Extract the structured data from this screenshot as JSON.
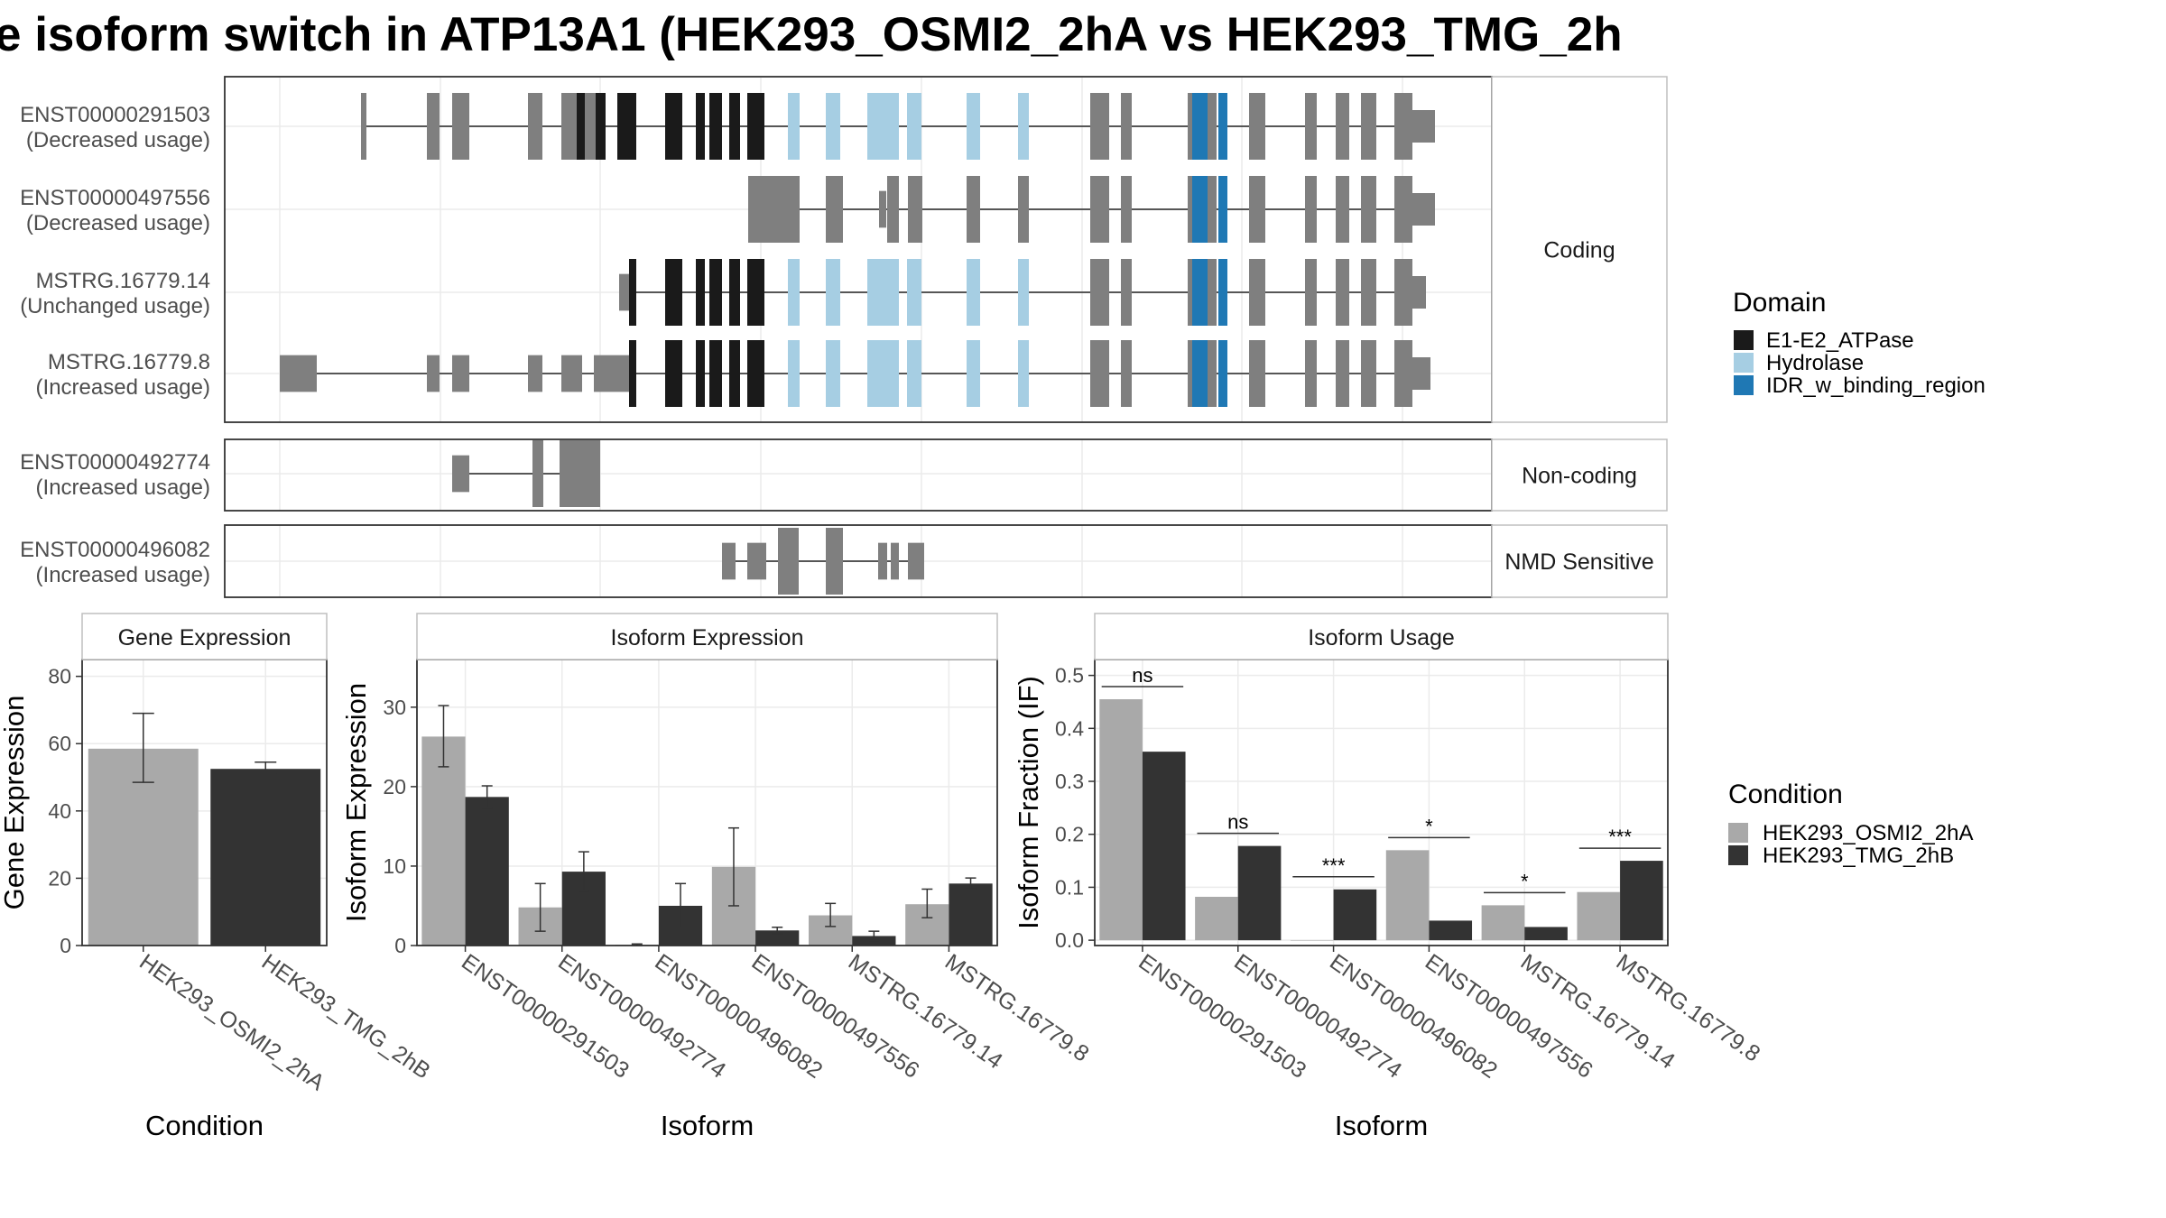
{
  "title": "e isoform switch in ATP13A1 (HEK293_OSMI2_2hA vs HEK293_TMG_2h",
  "colors": {
    "exon": "#7f7f7f",
    "E1-E2_ATPase": "#1a1a1a",
    "Hydrolase": "#a6cee3",
    "IDR_w_binding_region": "#1f78b4",
    "condition_a": "#a9a9a9",
    "condition_b": "#333333",
    "panel_border": "#333333",
    "strip_bg": "#ffffff",
    "grid": "#ebebeb"
  },
  "structure": {
    "facets": [
      "Coding",
      "Non-coding",
      "NMD Sensitive"
    ],
    "transcripts": [
      {
        "id": "ENST00000291503",
        "usage": "(Decreased usage)",
        "facet": "Coding"
      },
      {
        "id": "ENST00000497556",
        "usage": "(Decreased usage)",
        "facet": "Coding"
      },
      {
        "id": "MSTRG.16779.14",
        "usage": "(Unchanged usage)",
        "facet": "Coding"
      },
      {
        "id": "MSTRG.16779.8",
        "usage": "(Increased usage)",
        "facet": "Coding"
      },
      {
        "id": "ENST00000492774",
        "usage": "(Increased usage)",
        "facet": "Non-coding"
      },
      {
        "id": "ENST00000496082",
        "usage": "(Increased usage)",
        "facet": "NMD Sensitive"
      }
    ]
  },
  "legends": {
    "domain": {
      "title": "Domain",
      "items": [
        "E1-E2_ATPase",
        "Hydrolase",
        "IDR_w_binding_region"
      ]
    },
    "condition": {
      "title": "Condition",
      "items": [
        "HEK293_OSMI2_2hA",
        "HEK293_TMG_2hB"
      ]
    }
  },
  "chart_data": [
    {
      "type": "bar",
      "title": "Gene Expression",
      "xlabel": "Condition",
      "ylabel": "Gene Expression",
      "categories": [
        "HEK293_OSMI2_2hA",
        "HEK293_TMG_2hB"
      ],
      "values": [
        58.5,
        52.5
      ],
      "errors": [
        [
          48.5,
          69
        ],
        [
          51,
          54.5
        ]
      ],
      "ylim": [
        0,
        85
      ],
      "yticks": [
        0,
        20,
        40,
        60,
        80
      ]
    },
    {
      "type": "bar",
      "title": "Isoform Expression",
      "xlabel": "Isoform",
      "ylabel": "Isoform Expression",
      "categories": [
        "ENST00000291503",
        "ENST00000492774",
        "ENST00000496082",
        "ENST00000497556",
        "MSTRG.16779.14",
        "MSTRG.16779.8"
      ],
      "series": [
        {
          "name": "HEK293_OSMI2_2hA",
          "values": [
            26.3,
            4.8,
            0.1,
            9.9,
            3.8,
            5.2
          ],
          "errors": [
            [
              22.5,
              30.2
            ],
            [
              1.8,
              7.8
            ],
            [
              0.0,
              0.2
            ],
            [
              5.0,
              14.8
            ],
            [
              2.4,
              5.3
            ],
            [
              3.5,
              7.1
            ]
          ]
        },
        {
          "name": "HEK293_TMG_2hB",
          "values": [
            18.7,
            9.3,
            5.0,
            1.9,
            1.2,
            7.8
          ],
          "errors": [
            [
              17.3,
              20.1
            ],
            [
              6.8,
              11.8
            ],
            [
              2.3,
              7.8
            ],
            [
              1.5,
              2.3
            ],
            [
              0.6,
              1.8
            ],
            [
              7.1,
              8.5
            ]
          ]
        }
      ],
      "ylim": [
        0,
        36
      ],
      "yticks": [
        0,
        10,
        20,
        30
      ]
    },
    {
      "type": "bar",
      "title": "Isoform Usage",
      "xlabel": "Isoform",
      "ylabel": "Isoform Fraction (IF)",
      "categories": [
        "ENST00000291503",
        "ENST00000492774",
        "ENST00000496082",
        "ENST00000497556",
        "MSTRG.16779.14",
        "MSTRG.16779.8"
      ],
      "series": [
        {
          "name": "HEK293_OSMI2_2hA",
          "values": [
            0.455,
            0.082,
            0.0,
            0.17,
            0.066,
            0.091
          ]
        },
        {
          "name": "HEK293_TMG_2hB",
          "values": [
            0.356,
            0.178,
            0.096,
            0.037,
            0.025,
            0.15
          ]
        }
      ],
      "significance": [
        "ns",
        "ns",
        "***",
        "*",
        "*",
        "***"
      ],
      "ylim": [
        -0.01,
        0.53
      ],
      "yticks": [
        0.0,
        0.1,
        0.2,
        0.3,
        0.4,
        0.5
      ]
    }
  ]
}
